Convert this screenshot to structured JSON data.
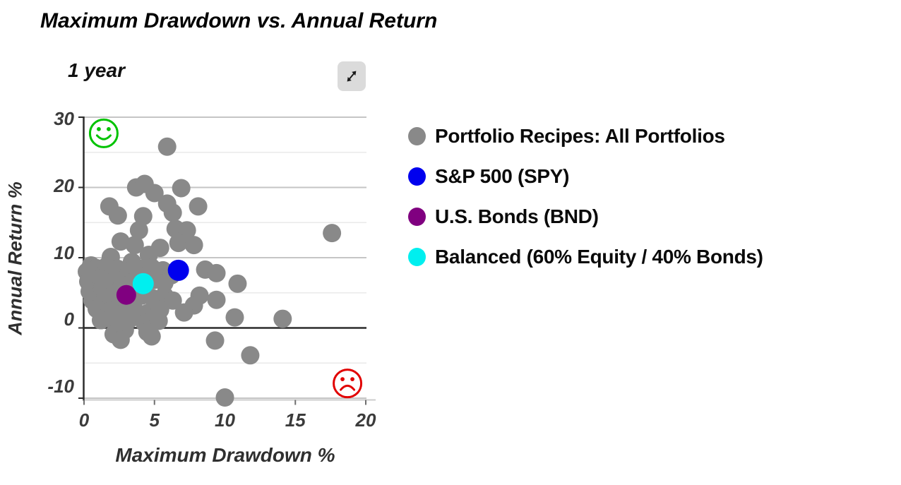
{
  "title": "Maximum Drawdown vs. Annual Return",
  "period_label": "1 year",
  "expand_button": {
    "icon": "expand-arrows-icon"
  },
  "colors": {
    "gray_series": "#898989",
    "spy_blue": "#0000ee",
    "bnd_purple": "#800080",
    "balanced_cyan": "#00efef",
    "smiley_green": "#00c300",
    "frowny_red": "#e10000",
    "zero_line": "#2b2b2b",
    "major_gridline": "#c5c5c5",
    "minor_gridline": "#eaeaea",
    "bottom_axis": "#cccccc"
  },
  "legend": [
    {
      "label": "Portfolio Recipes: All Portfolios",
      "color": "#898989"
    },
    {
      "label": "S&P 500 (SPY)",
      "color": "#0000ee"
    },
    {
      "label": "U.S. Bonds (BND)",
      "color": "#800080"
    },
    {
      "label": "Balanced (60% Equity / 40% Bonds)",
      "color": "#00efef"
    }
  ],
  "axes": {
    "x": {
      "ticks": [
        0,
        5,
        10,
        15,
        20
      ],
      "min": 0,
      "max": 20
    },
    "y": {
      "ticks": [
        30,
        20,
        10,
        0,
        -10
      ],
      "major_gridlines": [
        30,
        20,
        10,
        -10
      ],
      "minor_gridlines": [
        25,
        15,
        5,
        -5
      ],
      "min": -10,
      "max": 30
    }
  },
  "chart_data": {
    "type": "scatter",
    "title": "Maximum Drawdown vs. Annual Return",
    "subtitle": "1 year",
    "xlabel": "Maximum Drawdown %",
    "ylabel": "Annual Return %",
    "xlim": [
      0,
      20
    ],
    "ylim": [
      -10,
      30
    ],
    "grid": "horizontal-only",
    "legend_position": "right",
    "series": [
      {
        "name": "Portfolio Recipes: All Portfolios",
        "color": "#898989",
        "marker_radius": 13,
        "points": [
          [
            5.9,
            25.8
          ],
          [
            3.7,
            20.0
          ],
          [
            4.3,
            20.5
          ],
          [
            5.0,
            19.2
          ],
          [
            6.9,
            19.9
          ],
          [
            1.8,
            17.3
          ],
          [
            5.9,
            17.7
          ],
          [
            8.1,
            17.3
          ],
          [
            2.4,
            16.0
          ],
          [
            4.2,
            15.9
          ],
          [
            6.3,
            16.4
          ],
          [
            3.9,
            13.9
          ],
          [
            6.5,
            14.1
          ],
          [
            7.3,
            13.9
          ],
          [
            17.6,
            13.5
          ],
          [
            2.6,
            12.3
          ],
          [
            3.6,
            11.8
          ],
          [
            5.4,
            11.4
          ],
          [
            6.7,
            12.1
          ],
          [
            7.8,
            11.8
          ],
          [
            1.9,
            10.1
          ],
          [
            4.6,
            10.4
          ],
          [
            3.4,
            9.4
          ],
          [
            0.5,
            8.9
          ],
          [
            0.2,
            8.0
          ],
          [
            0.9,
            8.5
          ],
          [
            1.6,
            8.8
          ],
          [
            2.4,
            8.4
          ],
          [
            3.2,
            8.1
          ],
          [
            4.0,
            8.4
          ],
          [
            4.8,
            8.6
          ],
          [
            5.6,
            8.2
          ],
          [
            6.2,
            7.5
          ],
          [
            8.6,
            8.3
          ],
          [
            9.4,
            7.8
          ],
          [
            0.3,
            6.6
          ],
          [
            1.1,
            7.0
          ],
          [
            1.9,
            6.5
          ],
          [
            2.7,
            6.1
          ],
          [
            3.5,
            6.6
          ],
          [
            4.9,
            6.8
          ],
          [
            5.7,
            6.4
          ],
          [
            10.9,
            6.3
          ],
          [
            0.4,
            5.2
          ],
          [
            1.3,
            5.6
          ],
          [
            2.1,
            4.9
          ],
          [
            8.2,
            4.6
          ],
          [
            0.6,
            3.9
          ],
          [
            1.5,
            4.3
          ],
          [
            2.4,
            3.7
          ],
          [
            3.3,
            4.2
          ],
          [
            4.1,
            4.6
          ],
          [
            4.9,
            4.2
          ],
          [
            5.7,
            4.6
          ],
          [
            6.3,
            3.9
          ],
          [
            9.4,
            4.0
          ],
          [
            7.8,
            3.2
          ],
          [
            0.9,
            2.7
          ],
          [
            1.8,
            2.4
          ],
          [
            2.7,
            2.0
          ],
          [
            3.6,
            2.5
          ],
          [
            4.5,
            2.1
          ],
          [
            5.4,
            2.6
          ],
          [
            7.1,
            2.2
          ],
          [
            1.2,
            1.1
          ],
          [
            2.2,
            0.8
          ],
          [
            3.2,
            1.2
          ],
          [
            4.3,
            0.7
          ],
          [
            5.3,
            1.0
          ],
          [
            10.7,
            1.5
          ],
          [
            14.1,
            1.3
          ],
          [
            2.9,
            -0.3
          ],
          [
            2.1,
            -0.9
          ],
          [
            2.6,
            -1.7
          ],
          [
            4.5,
            -0.6
          ],
          [
            4.8,
            -1.2
          ],
          [
            9.3,
            -1.8
          ],
          [
            11.8,
            -3.9
          ],
          [
            10.0,
            -9.9
          ]
        ]
      },
      {
        "name": "S&P 500 (SPY)",
        "color": "#0000ee",
        "marker_radius": 15,
        "points": [
          [
            6.7,
            8.2
          ]
        ]
      },
      {
        "name": "U.S. Bonds (BND)",
        "color": "#800080",
        "marker_radius": 14,
        "points": [
          [
            3.0,
            4.7
          ]
        ]
      },
      {
        "name": "Balanced (60% Equity / 40% Bonds)",
        "color": "#00efef",
        "marker_radius": 15,
        "points": [
          [
            4.2,
            6.3
          ]
        ]
      }
    ],
    "annotations": [
      {
        "type": "smiley-face",
        "meaning": "good outcome region",
        "x": 1.4,
        "y": 27.7,
        "color": "#00c300"
      },
      {
        "type": "frowny-face",
        "meaning": "bad outcome region",
        "x": 18.7,
        "y": -7.9,
        "color": "#e10000"
      }
    ]
  }
}
